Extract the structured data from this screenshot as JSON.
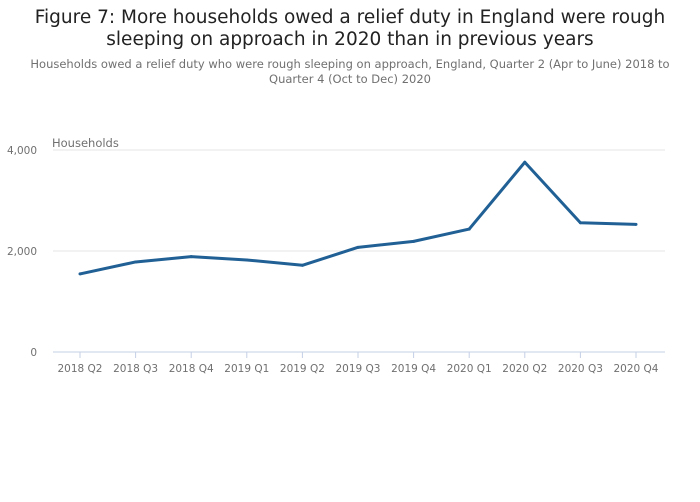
{
  "chart_data": {
    "type": "line",
    "title": "Figure 7: More households owed a relief duty in England were rough sleeping on approach in 2020 than in previous years",
    "subtitle": "Households owed a relief duty who were rough sleeping on approach, England, Quarter 2 (Apr to June) 2018 to Quarter 4 (Oct to Dec) 2020",
    "xlabel": "",
    "ylabel": "Households",
    "categories": [
      "2018 Q2",
      "2018 Q3",
      "2018 Q4",
      "2019 Q1",
      "2019 Q2",
      "2019 Q3",
      "2019 Q4",
      "2020 Q1",
      "2020 Q2",
      "2020 Q3",
      "2020 Q4"
    ],
    "series": [
      {
        "values": [
          1546,
          1783,
          1888,
          1822,
          1717,
          2072,
          2191,
          2434,
          3757,
          2559,
          2526
        ],
        "color": "#206095"
      }
    ],
    "yticks": [
      0,
      2000,
      4000
    ],
    "ytick_labels": [
      "0",
      "2,000",
      "4,000"
    ],
    "ylim": [
      0,
      4000
    ],
    "grid": true,
    "legend": "none"
  }
}
